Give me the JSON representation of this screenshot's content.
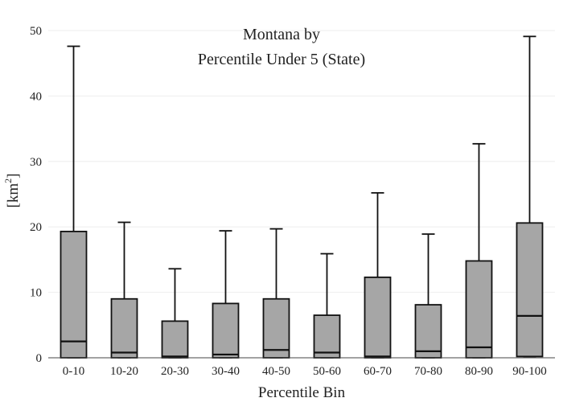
{
  "chart_data": {
    "type": "box",
    "title": [
      "Montana  by",
      "Percentile Under 5 (State)"
    ],
    "xlabel": "Percentile Bin",
    "ylabel": "[km2]",
    "ylabel_base": "[km",
    "ylabel_sup": "2",
    "ylabel_end": "]",
    "ylim": [
      0,
      50
    ],
    "yticks": [
      0,
      10,
      20,
      30,
      40,
      50
    ],
    "grid": true,
    "box_color": "#a6a6a6",
    "line_color": "#111111",
    "categories": [
      "0-10",
      "10-20",
      "20-30",
      "30-40",
      "40-50",
      "50-60",
      "60-70",
      "70-80",
      "80-90",
      "90-100"
    ],
    "boxes": [
      {
        "min": 0,
        "q1": 0,
        "median": 2.5,
        "q3": 19.3,
        "max": 47.6
      },
      {
        "min": 0,
        "q1": 0,
        "median": 0.8,
        "q3": 9.0,
        "max": 20.7
      },
      {
        "min": 0,
        "q1": 0,
        "median": 0.2,
        "q3": 5.6,
        "max": 13.6
      },
      {
        "min": 0,
        "q1": 0,
        "median": 0.5,
        "q3": 8.3,
        "max": 19.4
      },
      {
        "min": 0,
        "q1": 0,
        "median": 1.2,
        "q3": 9.0,
        "max": 19.7
      },
      {
        "min": 0,
        "q1": 0,
        "median": 0.8,
        "q3": 6.5,
        "max": 15.9
      },
      {
        "min": 0,
        "q1": 0,
        "median": 0.2,
        "q3": 12.3,
        "max": 25.2
      },
      {
        "min": 0,
        "q1": 0,
        "median": 1.0,
        "q3": 8.1,
        "max": 18.9
      },
      {
        "min": 0,
        "q1": 0,
        "median": 1.6,
        "q3": 14.8,
        "max": 32.7
      },
      {
        "min": 0.2,
        "q1": 0.2,
        "median": 6.4,
        "q3": 20.6,
        "max": 49.1
      }
    ]
  }
}
